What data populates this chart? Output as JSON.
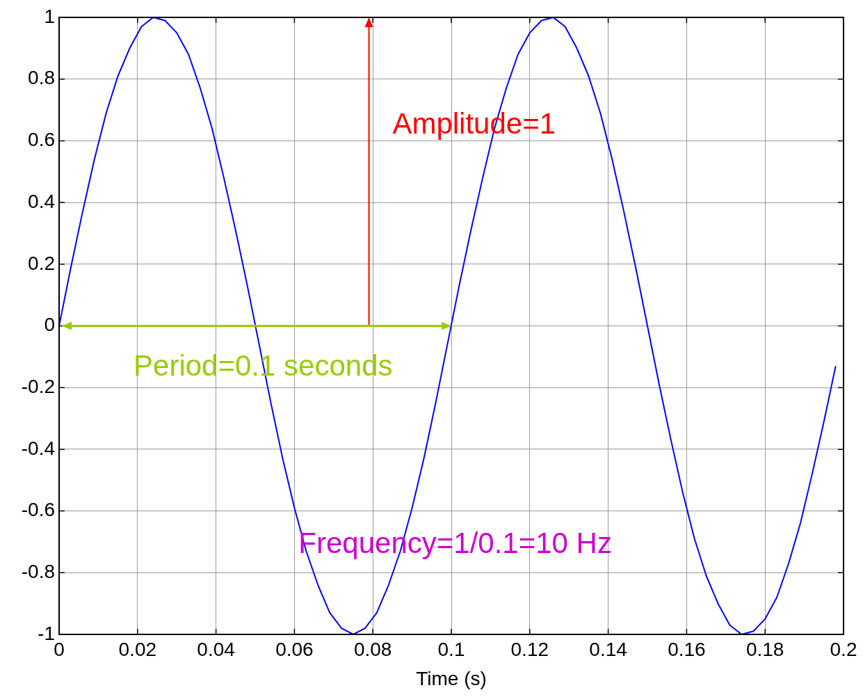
{
  "chart_data": {
    "type": "line",
    "xlabel": "Time (s)",
    "x": [
      0,
      0.003,
      0.006,
      0.009,
      0.012,
      0.015,
      0.018,
      0.021,
      0.024,
      0.027,
      0.03,
      0.033,
      0.036,
      0.039,
      0.042,
      0.045,
      0.048,
      0.051,
      0.054,
      0.057,
      0.06,
      0.063,
      0.066,
      0.069,
      0.072,
      0.075,
      0.078,
      0.081,
      0.084,
      0.087,
      0.09,
      0.093,
      0.096,
      0.099,
      0.102,
      0.105,
      0.108,
      0.111,
      0.114,
      0.117,
      0.12,
      0.123,
      0.126,
      0.129,
      0.132,
      0.135,
      0.138,
      0.141,
      0.144,
      0.147,
      0.15,
      0.153,
      0.156,
      0.159,
      0.162,
      0.165,
      0.168,
      0.171,
      0.174,
      0.177,
      0.18,
      0.183,
      0.186,
      0.189,
      0.192,
      0.195,
      0.198
    ],
    "series": [
      {
        "color": "#0000ff",
        "values": [
          0,
          0.19,
          0.37,
          0.54,
          0.69,
          0.81,
          0.9,
          0.97,
          1,
          0.99,
          0.95,
          0.88,
          0.77,
          0.64,
          0.48,
          0.31,
          0.13,
          -0.06,
          -0.25,
          -0.43,
          -0.59,
          -0.73,
          -0.84,
          -0.93,
          -0.98,
          -1,
          -0.98,
          -0.93,
          -0.84,
          -0.73,
          -0.59,
          -0.43,
          -0.25,
          -0.06,
          0.13,
          0.31,
          0.48,
          0.64,
          0.77,
          0.88,
          0.95,
          0.99,
          1,
          0.97,
          0.9,
          0.81,
          0.69,
          0.54,
          0.37,
          0.19,
          0,
          -0.19,
          -0.37,
          -0.54,
          -0.69,
          -0.81,
          -0.9,
          -0.97,
          -1,
          -0.99,
          -0.95,
          -0.88,
          -0.77,
          -0.64,
          -0.48,
          -0.31,
          -0.13
        ]
      }
    ],
    "xlim": [
      0,
      0.2
    ],
    "xticks": [
      0,
      0.02,
      0.04,
      0.06,
      0.08,
      0.1,
      0.12,
      0.14,
      0.16,
      0.18,
      0.2
    ],
    "ylim": [
      -1,
      1
    ],
    "yticks": [
      -1,
      -0.8,
      -0.6,
      -0.4,
      -0.2,
      0,
      0.2,
      0.4,
      0.6,
      0.8,
      1
    ],
    "grid": true,
    "legend": false,
    "marker": "none",
    "line_style": "solid",
    "annotations": [
      "Amplitude=1",
      "Period=0.1 seconds",
      "Frequency=1/0.1=10 Hz"
    ]
  }
}
